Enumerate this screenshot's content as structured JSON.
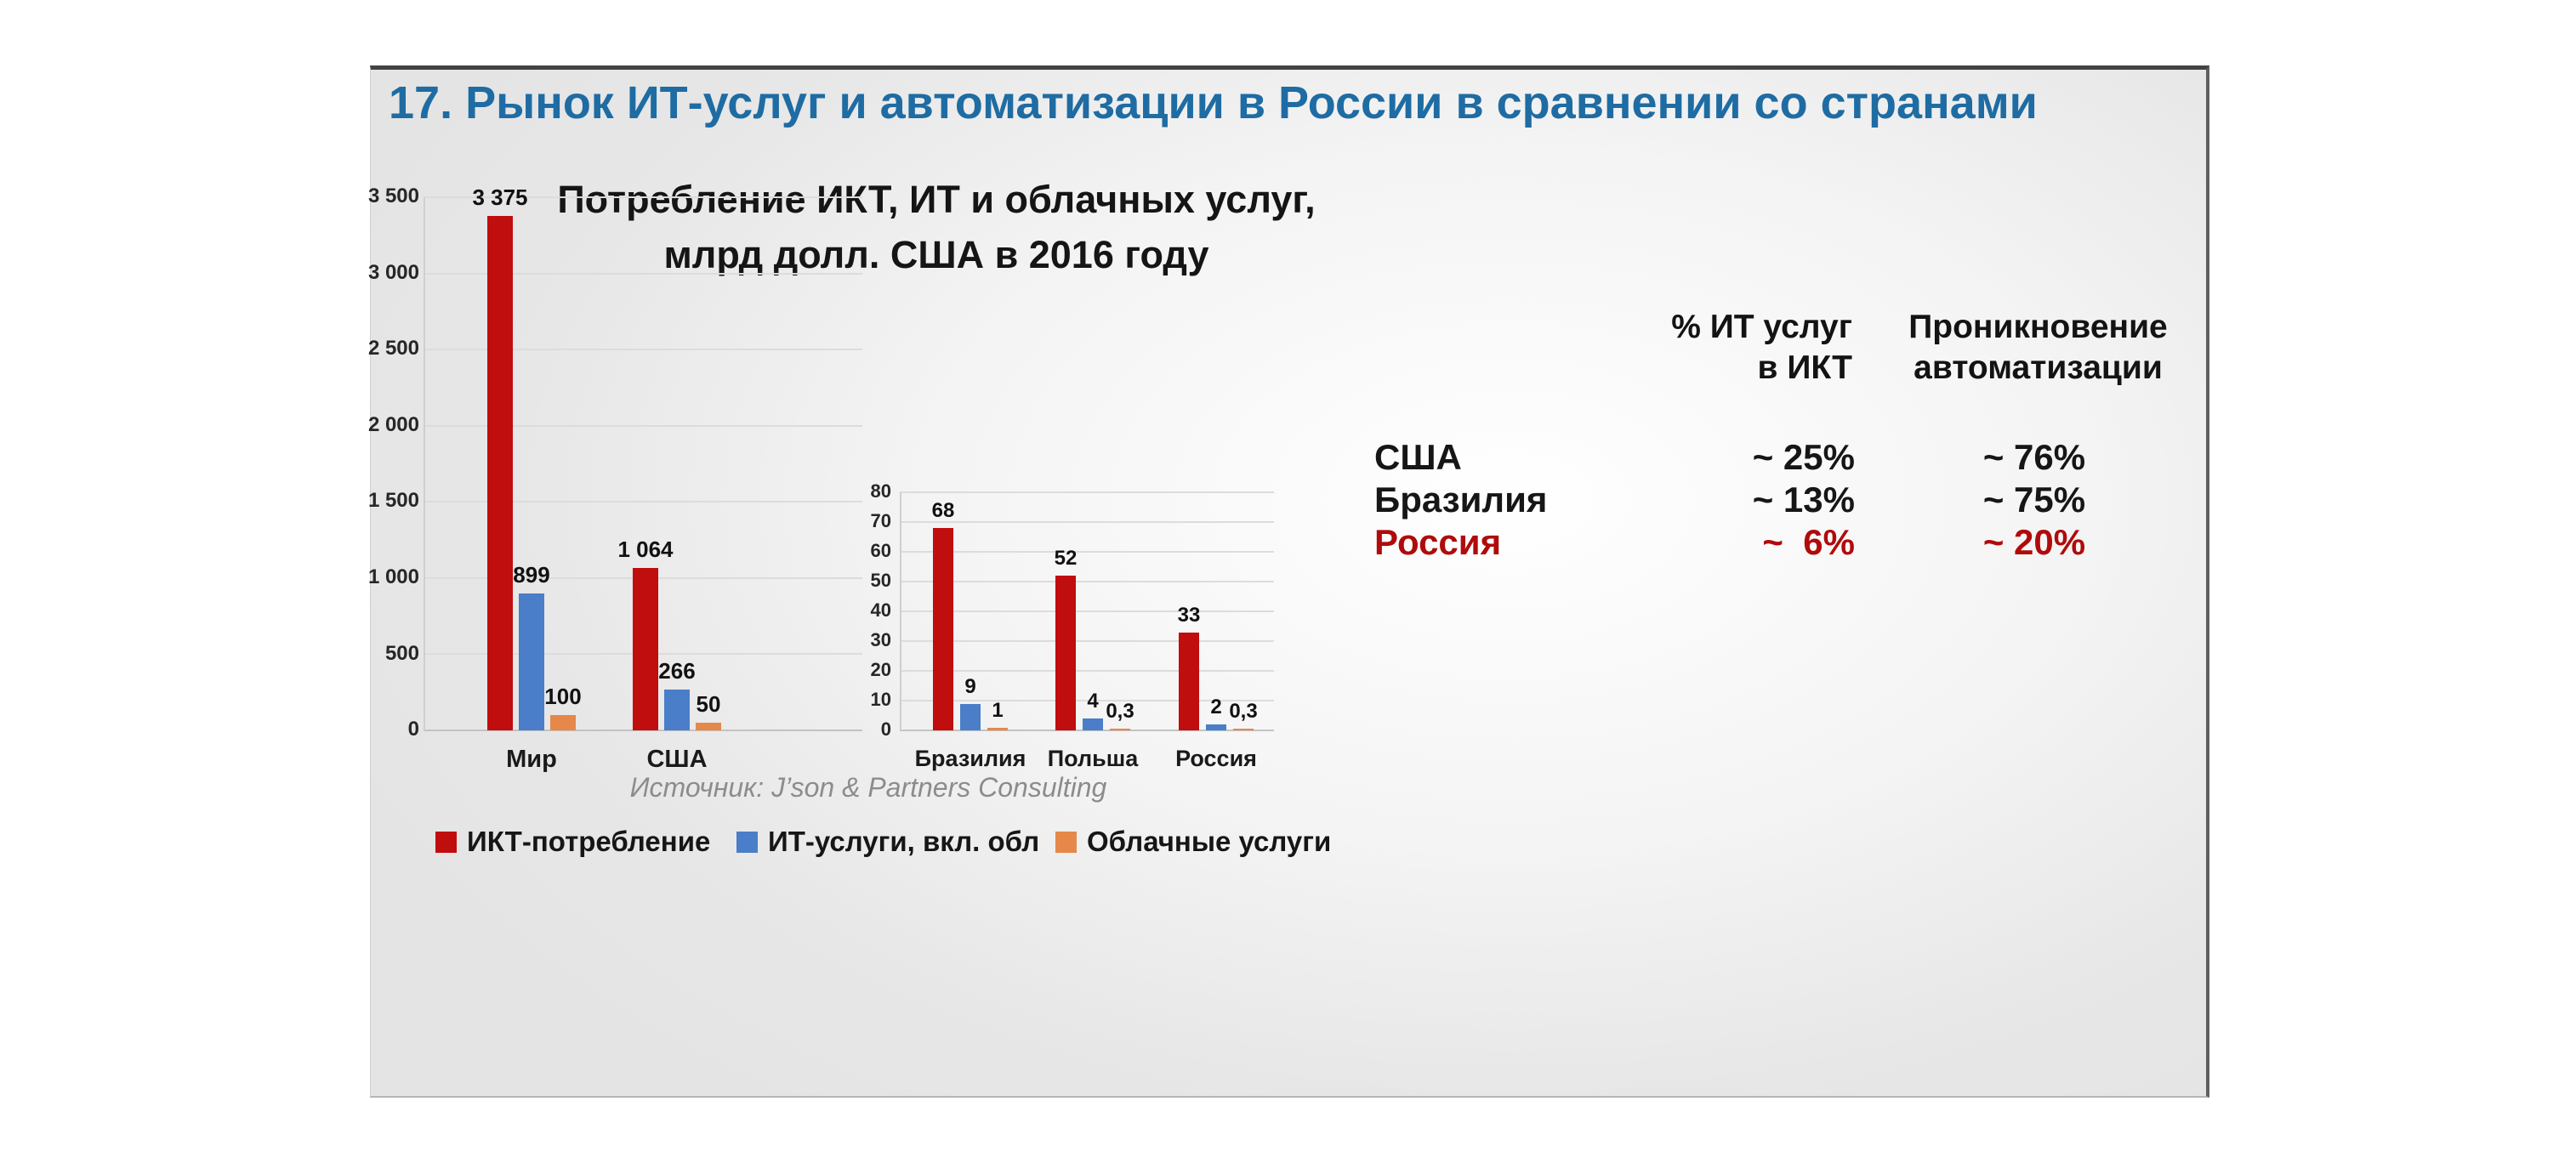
{
  "slide": {
    "title": "17. Рынок ИТ-услуг и автоматизации в России в сравнении со странами"
  },
  "chart_block": {
    "title_line1": "Потребление ИКТ, ИТ и облачных услуг,",
    "title_line2": "млрд долл. США в 2016 году",
    "source": "Источник: J’son & Partners Consulting"
  },
  "chart_data": [
    {
      "id": "main",
      "type": "bar",
      "title": "Потребление ИКТ, ИТ и облачных услуг, млрд долл. США в 2016 году",
      "categories": [
        "Мир",
        "США"
      ],
      "series": [
        {
          "name": "ИКТ-потребление",
          "color": "#c00d0d",
          "values": [
            3375,
            1064
          ],
          "value_labels": [
            "3 375",
            "1 064"
          ]
        },
        {
          "name": "ИТ-услуги, вкл. обл",
          "color": "#4a7ec8",
          "values": [
            899,
            266
          ],
          "value_labels": [
            "899",
            "266"
          ]
        },
        {
          "name": "Облачные услуги",
          "color": "#e5884a",
          "values": [
            100,
            50
          ],
          "value_labels": [
            "100",
            "50"
          ]
        }
      ],
      "ylim": [
        0,
        3500
      ],
      "yticks": [
        0,
        500,
        1000,
        1500,
        2000,
        2500,
        3000,
        3500
      ],
      "ytick_labels": [
        "0",
        "500",
        "1 000",
        "1 500",
        "2 000",
        "2 500",
        "3 000",
        "3 500"
      ],
      "grid": true,
      "legend_position": "bottom"
    },
    {
      "id": "small",
      "type": "bar",
      "title": "",
      "categories": [
        "Бразилия",
        "Польша",
        "Россия"
      ],
      "series": [
        {
          "name": "ИКТ-потребление",
          "color": "#c00d0d",
          "values": [
            68,
            52,
            33
          ],
          "value_labels": [
            "68",
            "52",
            "33"
          ]
        },
        {
          "name": "ИТ-услуги, вкл. обл",
          "color": "#4a7ec8",
          "values": [
            9,
            4,
            2
          ],
          "value_labels": [
            "9",
            "4",
            "2"
          ]
        },
        {
          "name": "Облачные услуги",
          "color": "#e5884a",
          "values": [
            1,
            0.3,
            0.3
          ],
          "value_labels": [
            "1",
            "0,3",
            "0,3"
          ]
        }
      ],
      "ylim": [
        0,
        80
      ],
      "yticks": [
        0,
        10,
        20,
        30,
        40,
        50,
        60,
        70,
        80
      ],
      "ytick_labels": [
        "0",
        "10",
        "20",
        "30",
        "40",
        "50",
        "60",
        "70",
        "80"
      ],
      "grid": true
    }
  ],
  "legend": {
    "items": [
      {
        "label": "ИКТ-потребление",
        "color": "#c00d0d"
      },
      {
        "label": "ИТ-услуги, вкл. обл",
        "color": "#4a7ec8"
      },
      {
        "label": "Облачные услуги",
        "color": "#e5884a"
      }
    ]
  },
  "table": {
    "headers": [
      {
        "line1": "% ИТ услуг",
        "line2": "в ИКТ"
      },
      {
        "line1": "Проникновение",
        "line2": "автоматизации"
      }
    ],
    "rows": [
      {
        "country": "США",
        "it_share": "~ 25%",
        "automation": "~ 76%",
        "highlight": false
      },
      {
        "country": "Бразилия",
        "it_share": "~ 13%",
        "automation": "~ 75%",
        "highlight": false
      },
      {
        "country": "Россия",
        "it_share": "~  6%",
        "automation": "~ 20%",
        "highlight": true
      }
    ]
  },
  "colors": {
    "title_blue": "#1e6ca3",
    "bar_red": "#c00d0d",
    "bar_blue": "#4a7ec8",
    "bar_orange": "#e5884a",
    "russia_red": "#b00b0b",
    "gridline": "#dcdcdc",
    "source_gray": "#8c8c8c"
  }
}
